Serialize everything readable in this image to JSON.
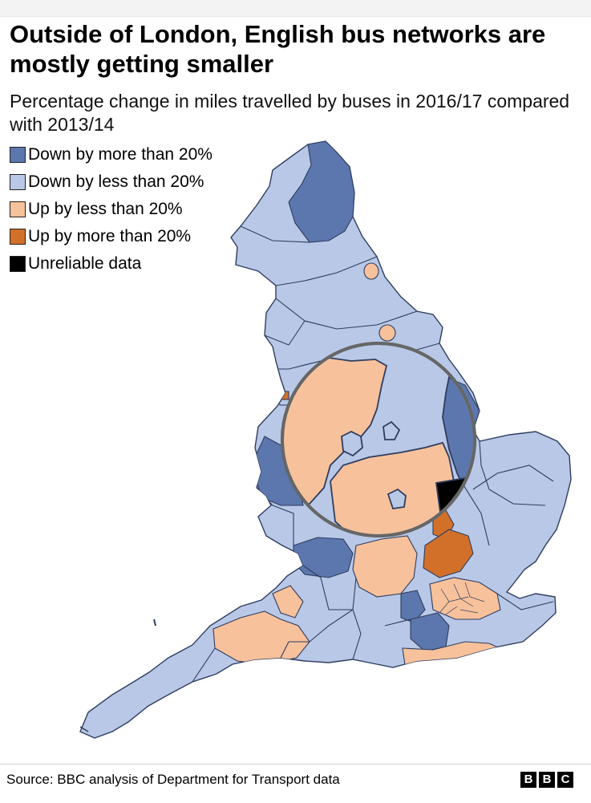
{
  "title": "Outside of London, English bus networks are mostly getting smaller",
  "subtitle": "Percentage change in miles travelled by buses in 2016/17 compared with 2013/14",
  "legend": [
    {
      "label": "Down by more than 20%",
      "color": "#5b77ad"
    },
    {
      "label": "Down by less than 20%",
      "color": "#b8c8e6"
    },
    {
      "label": "Up by less than 20%",
      "color": "#f7c19b"
    },
    {
      "label": "Up by more than 20%",
      "color": "#d2702a"
    },
    {
      "label": "Unreliable data",
      "color": "#000000"
    }
  ],
  "source": "Source: BBC analysis of Department for Transport data",
  "logo": [
    "B",
    "B",
    "C"
  ],
  "colors": {
    "boundary": "#2e3d5f",
    "magnifier_rim": "#666666"
  }
}
